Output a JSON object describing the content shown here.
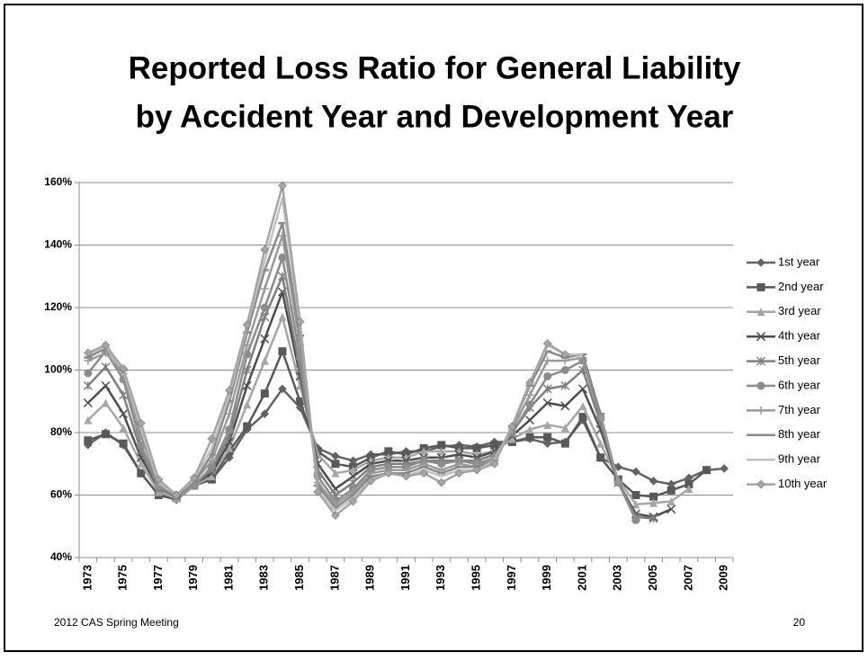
{
  "chart_data": {
    "type": "line",
    "title": [
      "Reported Loss Ratio for General Liability",
      "by Accident Year and Development Year"
    ],
    "categories": [
      "1973",
      null,
      "1975",
      null,
      "1977",
      null,
      "1979",
      null,
      "1981",
      null,
      "1983",
      null,
      "1985",
      null,
      "1987",
      null,
      "1989",
      null,
      "1991",
      null,
      "1993",
      null,
      "1995",
      null,
      "1997",
      null,
      "1999",
      null,
      "2001",
      null,
      "2003",
      null,
      "2005",
      null,
      "2007",
      null,
      "2009"
    ],
    "ylim": [
      40,
      160
    ],
    "yticks": [
      {
        "value": 40,
        "label": "40%"
      },
      {
        "value": 60,
        "label": "60%"
      },
      {
        "value": 80,
        "label": "80%"
      },
      {
        "value": 100,
        "label": "100%"
      },
      {
        "value": 120,
        "label": "120%"
      },
      {
        "value": 140,
        "label": "140%"
      },
      {
        "value": 160,
        "label": "160%"
      }
    ],
    "grid": true,
    "legend": "right",
    "series": [
      {
        "name": "1st year",
        "color": "#636363",
        "marker": "diamond",
        "values": [
          76,
          80,
          76,
          67,
          60,
          58.5,
          63,
          65,
          72,
          81,
          86,
          94,
          88,
          75,
          72.5,
          71,
          73,
          73,
          74,
          74,
          75.5,
          76,
          75.5,
          77,
          77,
          78,
          76.5,
          77,
          84,
          72,
          69,
          67.5,
          64.5,
          63.5,
          65.5,
          68,
          68.5
        ]
      },
      {
        "name": "2nd year",
        "color": "#595959",
        "marker": "square",
        "values": [
          77.5,
          79.5,
          76.5,
          67,
          60,
          59,
          63,
          65,
          74,
          82,
          92.5,
          106,
          90,
          74,
          70,
          69,
          72,
          74,
          73,
          75,
          76,
          75,
          75,
          76,
          77,
          78.5,
          78.5,
          76.5,
          85,
          72,
          65,
          60,
          59.5,
          61.5,
          63.5,
          68,
          null
        ]
      },
      {
        "name": "3rd year",
        "color": "#a6a6a6",
        "marker": "triangle",
        "values": [
          84,
          89.5,
          81.5,
          70,
          61,
          59,
          63,
          66,
          75,
          89,
          103,
          117,
          95,
          73,
          67,
          68,
          71,
          72,
          72,
          74,
          74,
          74,
          73,
          74,
          78,
          81,
          82.5,
          81.5,
          88.5,
          76.5,
          65,
          57,
          57.5,
          58,
          62,
          null,
          null
        ]
      },
      {
        "name": "4th year",
        "color": "#4d4d4d",
        "marker": "x",
        "values": [
          89.5,
          95,
          86,
          72,
          62,
          59.5,
          63.5,
          67,
          77,
          95,
          110,
          125,
          98,
          70,
          62,
          66,
          70,
          71,
          71,
          72,
          72,
          73,
          72,
          74,
          79,
          84,
          89.5,
          88.5,
          94,
          81,
          64,
          54,
          53,
          55.5,
          null,
          null,
          null
        ]
      },
      {
        "name": "5th year",
        "color": "#7f7f7f",
        "marker": "star",
        "values": [
          95,
          101,
          92,
          74,
          62,
          59.5,
          63.5,
          68,
          79,
          100,
          117,
          130,
          100,
          68,
          60,
          64,
          69,
          70,
          70,
          71,
          71,
          71,
          71,
          73,
          80,
          88,
          94,
          95,
          100,
          83,
          64,
          53,
          52.5,
          null,
          null,
          null,
          null
        ]
      },
      {
        "name": "6th year",
        "color": "#8c8c8c",
        "marker": "circle",
        "values": [
          99,
          106,
          97,
          76,
          63,
          60,
          63,
          69,
          81,
          105,
          120,
          136,
          104,
          66,
          58,
          62,
          68,
          69,
          69,
          71,
          70,
          71,
          70,
          72,
          80,
          89,
          98,
          100,
          103,
          85,
          64,
          52,
          null,
          null,
          null,
          null,
          null
        ]
      },
      {
        "name": "7th year",
        "color": "#9a9a9a",
        "marker": "plus",
        "values": [
          103,
          105.5,
          99,
          79,
          63.5,
          60,
          64,
          71,
          86,
          108,
          126,
          143,
          108,
          64,
          57,
          61,
          67,
          68,
          68,
          70,
          68,
          70,
          69,
          72,
          81,
          92,
          103,
          103,
          104,
          86,
          64,
          null,
          null,
          null,
          null,
          null,
          null
        ]
      },
      {
        "name": "8th year",
        "color": "#8a8a8a",
        "marker": "dash",
        "values": [
          104,
          107,
          100,
          80,
          64,
          60,
          64,
          73,
          90,
          112,
          132,
          147,
          111,
          63,
          56,
          60,
          66,
          67,
          67,
          69,
          67,
          69,
          69,
          71,
          82,
          95,
          106,
          104,
          105,
          86,
          null,
          null,
          null,
          null,
          null,
          null,
          null
        ]
      },
      {
        "name": "9th year",
        "color": "#c0c0c0",
        "marker": "none",
        "values": [
          105,
          107.5,
          100,
          81,
          64,
          60,
          65,
          75,
          92,
          114,
          135,
          155,
          114,
          62,
          55,
          59,
          65,
          67,
          66,
          68,
          66,
          68,
          68,
          71,
          82,
          96,
          108,
          105,
          105,
          null,
          null,
          null,
          null,
          null,
          null,
          null,
          null
        ]
      },
      {
        "name": "10th year",
        "color": "#a5a5a5",
        "marker": "diamond",
        "values": [
          105.5,
          108,
          100.5,
          83,
          65,
          60,
          65.5,
          78,
          93.5,
          114.5,
          138.5,
          159,
          115.5,
          61,
          53.5,
          58,
          64.5,
          67,
          66,
          67,
          64,
          67,
          68,
          70,
          82,
          96,
          108.5,
          105,
          null,
          null,
          null,
          null,
          null,
          null,
          null,
          null,
          null
        ]
      }
    ]
  },
  "footer": {
    "left": "2012 CAS Spring Meeting",
    "page": "20"
  }
}
